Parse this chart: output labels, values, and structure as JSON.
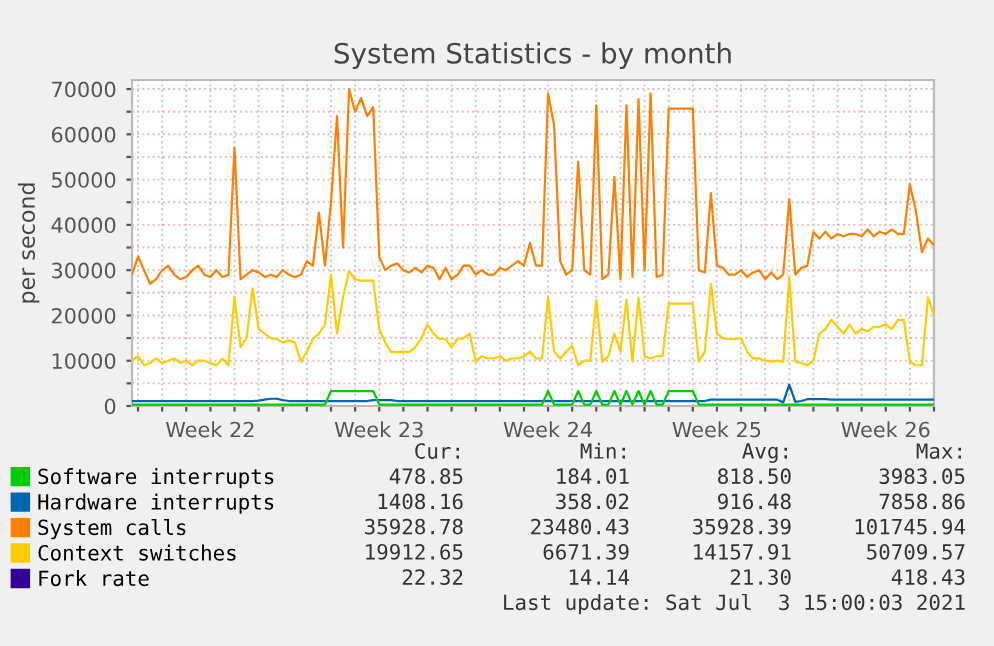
{
  "chart_data": {
    "type": "line",
    "title": "System Statistics - by month",
    "ylabel": "per second",
    "categories": [
      null,
      null,
      null,
      null,
      null,
      null,
      null,
      null,
      null,
      null,
      null,
      null,
      null,
      "Week 22",
      null,
      null,
      null,
      null,
      null,
      null,
      null,
      null,
      null,
      null,
      null,
      null,
      null,
      null,
      null,
      null,
      null,
      null,
      null,
      null,
      null,
      null,
      null,
      null,
      null,
      null,
      null,
      "Week 23",
      null,
      null,
      null,
      null,
      null,
      null,
      null,
      null,
      null,
      null,
      null,
      null,
      null,
      null,
      null,
      null,
      null,
      null,
      null,
      null,
      null,
      null,
      null,
      null,
      null,
      null,
      null,
      "Week 24",
      null,
      null,
      null,
      null,
      null,
      null,
      null,
      null,
      null,
      null,
      null,
      null,
      null,
      null,
      null,
      null,
      null,
      null,
      null,
      null,
      null,
      null,
      null,
      null,
      null,
      null,
      null,
      "Week 25",
      null,
      null,
      null,
      null,
      null,
      null,
      null,
      null,
      null,
      null,
      null,
      null,
      null,
      null,
      null,
      null,
      null,
      null,
      null,
      null,
      null,
      null,
      null,
      null,
      null,
      null,
      null,
      "Week 26",
      null,
      null,
      null,
      null,
      null,
      null,
      null,
      null
    ],
    "ylim": [
      0,
      72000
    ],
    "yticks": [
      0,
      {
        "value": 5000,
        "label": null
      },
      10000,
      {
        "value": 15000,
        "label": null
      },
      20000,
      {
        "value": 25000,
        "label": null
      },
      30000,
      {
        "value": 35000,
        "label": null
      },
      40000,
      {
        "value": 45000,
        "label": null
      },
      50000,
      {
        "value": 55000,
        "label": null
      },
      60000,
      {
        "value": 65000,
        "label": null
      },
      70000
    ],
    "grid": true,
    "legend": "bottom",
    "marker": "none",
    "line_style": "solid",
    "series": [
      {
        "name": "Software interrupts",
        "color": "#00cc00",
        "values": [
          300,
          300,
          300,
          300,
          300,
          300,
          300,
          300,
          300,
          300,
          300,
          300,
          300,
          300,
          300,
          300,
          300,
          300,
          300,
          300,
          300,
          300,
          300,
          300,
          300,
          300,
          300,
          300,
          300,
          300,
          300,
          300,
          300,
          3300,
          3300,
          3300,
          3300,
          3300,
          3300,
          3300,
          3300,
          300,
          300,
          300,
          300,
          300,
          300,
          300,
          300,
          300,
          300,
          300,
          300,
          300,
          300,
          300,
          300,
          300,
          300,
          300,
          300,
          300,
          300,
          300,
          300,
          300,
          300,
          300,
          300,
          3300,
          300,
          300,
          300,
          300,
          3300,
          300,
          300,
          3300,
          300,
          300,
          3300,
          300,
          3300,
          300,
          3300,
          300,
          3300,
          300,
          300,
          3300,
          3300,
          3300,
          3300,
          3300,
          300,
          300,
          300,
          300,
          300,
          300,
          300,
          300,
          300,
          300,
          300,
          300,
          300,
          300,
          300,
          300,
          300,
          300,
          300,
          300,
          300,
          300,
          300,
          300,
          300,
          300,
          300,
          300,
          300,
          300,
          300,
          300,
          300,
          300,
          300,
          300,
          300,
          300,
          300,
          300
        ]
      },
      {
        "name": "Hardware interrupts",
        "color": "#0066b3",
        "values": [
          1100,
          1100,
          1100,
          1100,
          1100,
          1100,
          1100,
          1100,
          1100,
          1100,
          1100,
          1100,
          1100,
          1100,
          1100,
          1100,
          1100,
          1100,
          1100,
          1100,
          1100,
          1200,
          1400,
          1600,
          1600,
          1300,
          1100,
          1100,
          1100,
          1100,
          1100,
          1100,
          1100,
          1100,
          1100,
          1100,
          1100,
          1100,
          1100,
          1100,
          1300,
          1300,
          1300,
          1300,
          1100,
          1100,
          1100,
          1100,
          1100,
          1100,
          1100,
          1100,
          1100,
          1100,
          1100,
          1100,
          1100,
          1100,
          1100,
          1100,
          1100,
          1100,
          1100,
          1100,
          1100,
          1100,
          1100,
          1100,
          1100,
          1100,
          1100,
          1100,
          1100,
          1100,
          1100,
          1100,
          1100,
          1100,
          1100,
          1100,
          1100,
          1100,
          1100,
          1100,
          1100,
          1100,
          1100,
          1100,
          1100,
          1100,
          1100,
          1100,
          1100,
          1100,
          1100,
          1100,
          1400,
          1400,
          1400,
          1400,
          1400,
          1400,
          1400,
          1400,
          1400,
          1400,
          1400,
          1400,
          800,
          4700,
          900,
          1100,
          1500,
          1500,
          1500,
          1500,
          1400,
          1400,
          1400,
          1400,
          1400,
          1400,
          1400,
          1400,
          1400,
          1400,
          1400,
          1400,
          1400,
          1400,
          1400,
          1400,
          1400,
          1400
        ]
      },
      {
        "name": "System calls",
        "color": "#ff8000",
        "values": [
          29000,
          33000,
          30000,
          27000,
          28000,
          30000,
          31000,
          29000,
          28000,
          28500,
          30000,
          31000,
          29000,
          28500,
          30000,
          28500,
          29000,
          57000,
          28000,
          29000,
          30000,
          29500,
          28500,
          29000,
          28500,
          30000,
          29000,
          28500,
          29000,
          32000,
          31000,
          42700,
          31000,
          45000,
          64000,
          35000,
          70000,
          65000,
          68000,
          64000,
          66000,
          33000,
          30000,
          31000,
          31500,
          30000,
          29500,
          30500,
          29500,
          31000,
          30500,
          28000,
          30500,
          28000,
          29000,
          31000,
          31000,
          29000,
          30000,
          29000,
          29000,
          30500,
          30000,
          31000,
          32000,
          31000,
          36000,
          31000,
          31000,
          69000,
          62000,
          32000,
          29000,
          30000,
          54000,
          30000,
          29000,
          66400,
          28000,
          29000,
          50600,
          28000,
          66400,
          28500,
          67800,
          30000,
          69000,
          28500,
          29000,
          65700,
          65700,
          65700,
          65700,
          65700,
          30000,
          29500,
          47000,
          31000,
          30500,
          29000,
          29000,
          30000,
          28500,
          29500,
          30000,
          28000,
          29500,
          28000,
          29000,
          45600,
          29000,
          30500,
          31000,
          38400,
          37000,
          38500,
          37000,
          38000,
          37500,
          38000,
          38000,
          37500,
          39000,
          37500,
          38500,
          38000,
          39000,
          38000,
          38000,
          49000,
          43000,
          34000,
          37000,
          35500
        ]
      },
      {
        "name": "Context switches",
        "color": "#ffcc00",
        "values": [
          10000,
          11000,
          9000,
          9500,
          10500,
          9500,
          10000,
          10500,
          9500,
          10000,
          9000,
          10000,
          10000,
          9500,
          9000,
          10500,
          9000,
          24000,
          13000,
          15000,
          26000,
          17000,
          16000,
          15000,
          14800,
          14000,
          14500,
          14000,
          9800,
          12000,
          14800,
          16000,
          18000,
          29000,
          16000,
          24000,
          29800,
          28000,
          27700,
          27700,
          27700,
          17000,
          14000,
          11900,
          11900,
          12000,
          11900,
          13000,
          15000,
          18000,
          16000,
          14800,
          14800,
          13000,
          14800,
          15000,
          16000,
          9800,
          11000,
          10500,
          10500,
          11000,
          10000,
          10500,
          10500,
          11000,
          12000,
          10500,
          10500,
          24000,
          12000,
          10500,
          12000,
          13300,
          9000,
          10000,
          10000,
          23400,
          9800,
          11000,
          16000,
          12000,
          23400,
          9800,
          24000,
          11000,
          10500,
          11000,
          11000,
          22600,
          22600,
          22600,
          22600,
          22600,
          9800,
          12000,
          27000,
          16000,
          15000,
          14800,
          14800,
          15000,
          12000,
          10500,
          10500,
          10000,
          9800,
          10000,
          9800,
          28400,
          9800,
          9500,
          9000,
          10000,
          16000,
          17000,
          19000,
          17500,
          16000,
          18000,
          16000,
          17000,
          16500,
          17500,
          17500,
          18000,
          17000,
          19000,
          19000,
          9800,
          9000,
          9000,
          24000,
          20000
        ]
      },
      {
        "name": "Fork rate",
        "color": "#330099",
        "values": [
          null,
          null,
          null,
          null,
          null,
          null,
          null,
          null,
          null,
          null,
          null,
          null,
          null,
          null,
          null,
          null,
          null,
          null,
          null,
          null,
          null,
          null,
          null,
          null,
          null,
          null,
          null,
          null,
          null,
          null,
          null,
          null,
          null,
          null,
          null,
          null,
          null,
          null,
          null,
          null,
          null,
          null,
          null,
          null,
          null,
          null,
          null,
          null,
          null,
          null,
          null,
          null,
          null,
          null,
          null,
          null,
          null,
          null,
          null,
          null,
          null,
          null,
          null,
          null,
          null,
          null,
          null,
          null,
          null,
          null,
          null,
          null,
          null,
          null,
          null,
          null,
          null,
          null,
          null,
          null,
          null,
          null,
          null,
          null,
          null,
          null,
          null,
          null,
          null,
          null,
          null,
          null,
          null,
          null,
          null,
          null,
          null,
          null,
          null,
          null,
          null,
          null,
          null,
          null,
          null,
          null,
          null,
          null,
          null,
          null,
          null,
          null,
          null,
          null,
          null,
          null,
          null,
          null,
          null,
          null,
          null,
          null,
          null,
          null,
          null,
          null,
          null,
          null,
          null,
          null,
          null,
          null,
          null,
          null
        ]
      }
    ],
    "annotations": [
      "Cur:",
      "Min:",
      "Avg:",
      "Max:",
      "478.85",
      "184.01",
      "818.50",
      "3983.05",
      "1408.16",
      "358.02",
      "916.48",
      "7858.86",
      "35928.78",
      "23480.43",
      "35928.39",
      "101745.94",
      "19912.65",
      "6671.39",
      "14157.91",
      "50709.57",
      "22.32",
      "14.14",
      "21.30",
      "418.43",
      "Last update: Sat Jul  3 15:00:03 2021"
    ]
  }
}
